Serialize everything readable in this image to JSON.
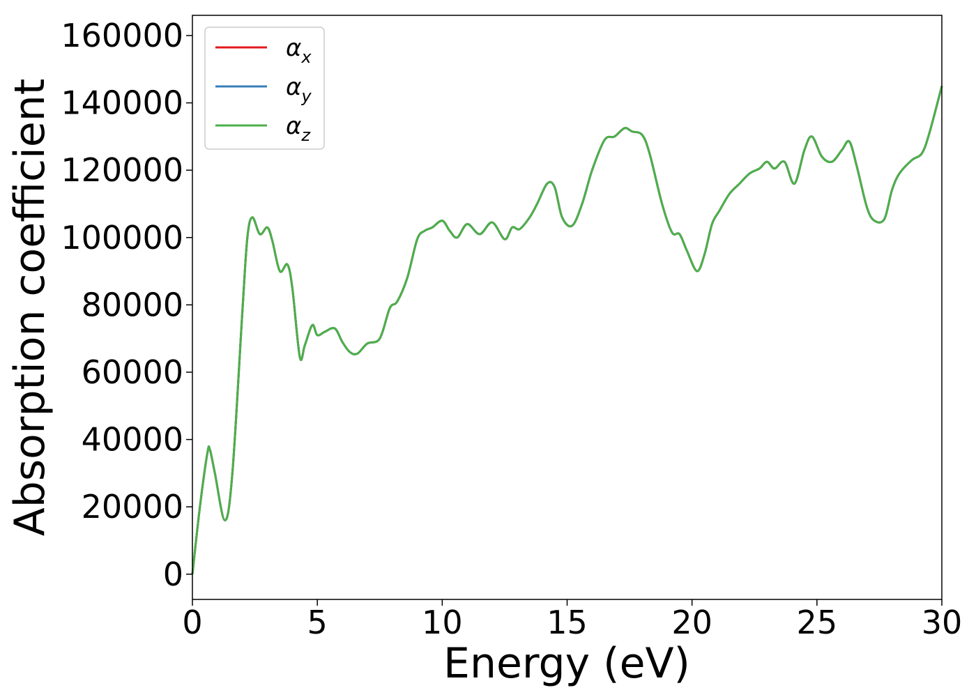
{
  "chart_data": {
    "type": "line",
    "title": "",
    "xlabel": "Energy (eV)",
    "ylabel": "Absorption coefficient",
    "xlim": [
      0,
      30
    ],
    "ylim": [
      -7500,
      166000
    ],
    "xticks": [
      0,
      5,
      10,
      15,
      20,
      25,
      30
    ],
    "xtick_labels": [
      "0",
      "5",
      "10",
      "15",
      "20",
      "25",
      "30"
    ],
    "yticks": [
      0,
      20000,
      40000,
      60000,
      80000,
      100000,
      120000,
      140000,
      160000
    ],
    "ytick_labels": [
      "0",
      "20000",
      "40000",
      "60000",
      "80000",
      "100000",
      "120000",
      "140000",
      "160000"
    ],
    "grid": false,
    "legend_position": "top-left",
    "x": [
      0,
      0.3,
      0.6,
      0.7,
      0.9,
      1.3,
      1.6,
      2.0,
      2.2,
      2.4,
      2.7,
      3.0,
      3.2,
      3.5,
      3.8,
      4.0,
      4.3,
      4.5,
      4.8,
      5.0,
      5.3,
      5.7,
      6.0,
      6.3,
      6.6,
      7.0,
      7.5,
      7.9,
      8.2,
      8.6,
      9.0,
      9.3,
      9.6,
      10.0,
      10.3,
      10.6,
      11.0,
      11.5,
      12.0,
      12.5,
      12.8,
      13.1,
      13.5,
      13.8,
      14.2,
      14.5,
      14.8,
      15.2,
      15.6,
      16.0,
      16.5,
      16.9,
      17.3,
      17.6,
      18.0,
      18.3,
      18.8,
      19.2,
      19.5,
      19.8,
      20.2,
      20.5,
      20.8,
      21.1,
      21.5,
      21.9,
      22.3,
      22.7,
      23.0,
      23.3,
      23.7,
      24.1,
      24.5,
      24.8,
      25.2,
      25.6,
      26.0,
      26.3,
      26.6,
      27.0,
      27.3,
      27.7,
      28.0,
      28.3,
      28.8,
      29.2,
      29.5,
      30.0
    ],
    "series": [
      {
        "name": "α_x",
        "color": "#e41a1c",
        "values": [
          0,
          20000,
          36000,
          37000,
          30000,
          16000,
          30000,
          78000,
          100000,
          106000,
          101000,
          103000,
          99000,
          90000,
          92000,
          85000,
          64500,
          68000,
          74000,
          71000,
          72000,
          73000,
          69000,
          66000,
          65500,
          68500,
          70000,
          79000,
          81000,
          88000,
          99500,
          102000,
          103000,
          105000,
          102000,
          100000,
          104000,
          101000,
          104500,
          99500,
          103000,
          102500,
          106000,
          110000,
          116000,
          115000,
          106000,
          103500,
          110000,
          120000,
          129000,
          130000,
          132500,
          131500,
          130500,
          125000,
          110000,
          101500,
          101000,
          96000,
          90000,
          95000,
          104000,
          108000,
          113000,
          116000,
          119000,
          120500,
          122500,
          120500,
          122500,
          116000,
          126000,
          130000,
          124000,
          122500,
          126000,
          128500,
          121000,
          109000,
          105000,
          105500,
          114000,
          119000,
          123000,
          125000,
          131000,
          145000
        ]
      },
      {
        "name": "α_y",
        "color": "#377eb8",
        "values": [
          0,
          20000,
          36000,
          37000,
          30000,
          16000,
          30000,
          78000,
          100000,
          106000,
          101000,
          103000,
          99000,
          90000,
          92000,
          85000,
          64500,
          68000,
          74000,
          71000,
          72000,
          73000,
          69000,
          66000,
          65500,
          68500,
          70000,
          79000,
          81000,
          88000,
          99500,
          102000,
          103000,
          105000,
          102000,
          100000,
          104000,
          101000,
          104500,
          99500,
          103000,
          102500,
          106000,
          110000,
          116000,
          115000,
          106000,
          103500,
          110000,
          120000,
          129000,
          130000,
          132500,
          131500,
          130500,
          125000,
          110000,
          101500,
          101000,
          96000,
          90000,
          95000,
          104000,
          108000,
          113000,
          116000,
          119000,
          120500,
          122500,
          120500,
          122500,
          116000,
          126000,
          130000,
          124000,
          122500,
          126000,
          128500,
          121000,
          109000,
          105000,
          105500,
          114000,
          119000,
          123000,
          125000,
          131000,
          145000
        ]
      },
      {
        "name": "α_z",
        "color": "#4daf4a",
        "values": [
          0,
          20000,
          36000,
          37000,
          30000,
          16000,
          30000,
          78000,
          100000,
          106000,
          101000,
          103000,
          99000,
          90000,
          92000,
          85000,
          64500,
          68000,
          74000,
          71000,
          72000,
          73000,
          69000,
          66000,
          65500,
          68500,
          70000,
          79000,
          81000,
          88000,
          99500,
          102000,
          103000,
          105000,
          102000,
          100000,
          104000,
          101000,
          104500,
          99500,
          103000,
          102500,
          106000,
          110000,
          116000,
          115000,
          106000,
          103500,
          110000,
          120000,
          129000,
          130000,
          132500,
          131500,
          130500,
          125000,
          110000,
          101500,
          101000,
          96000,
          90000,
          95000,
          104000,
          108000,
          113000,
          116000,
          119000,
          120500,
          122500,
          120500,
          122500,
          116000,
          126000,
          130000,
          124000,
          122500,
          126000,
          128500,
          121000,
          109000,
          105000,
          105500,
          114000,
          119000,
          123000,
          125000,
          131000,
          145000
        ]
      }
    ],
    "legend": [
      {
        "symbol": "α",
        "subscript": "x",
        "color": "#e41a1c"
      },
      {
        "symbol": "α",
        "subscript": "y",
        "color": "#377eb8"
      },
      {
        "symbol": "α",
        "subscript": "z",
        "color": "#4daf4a"
      }
    ]
  }
}
